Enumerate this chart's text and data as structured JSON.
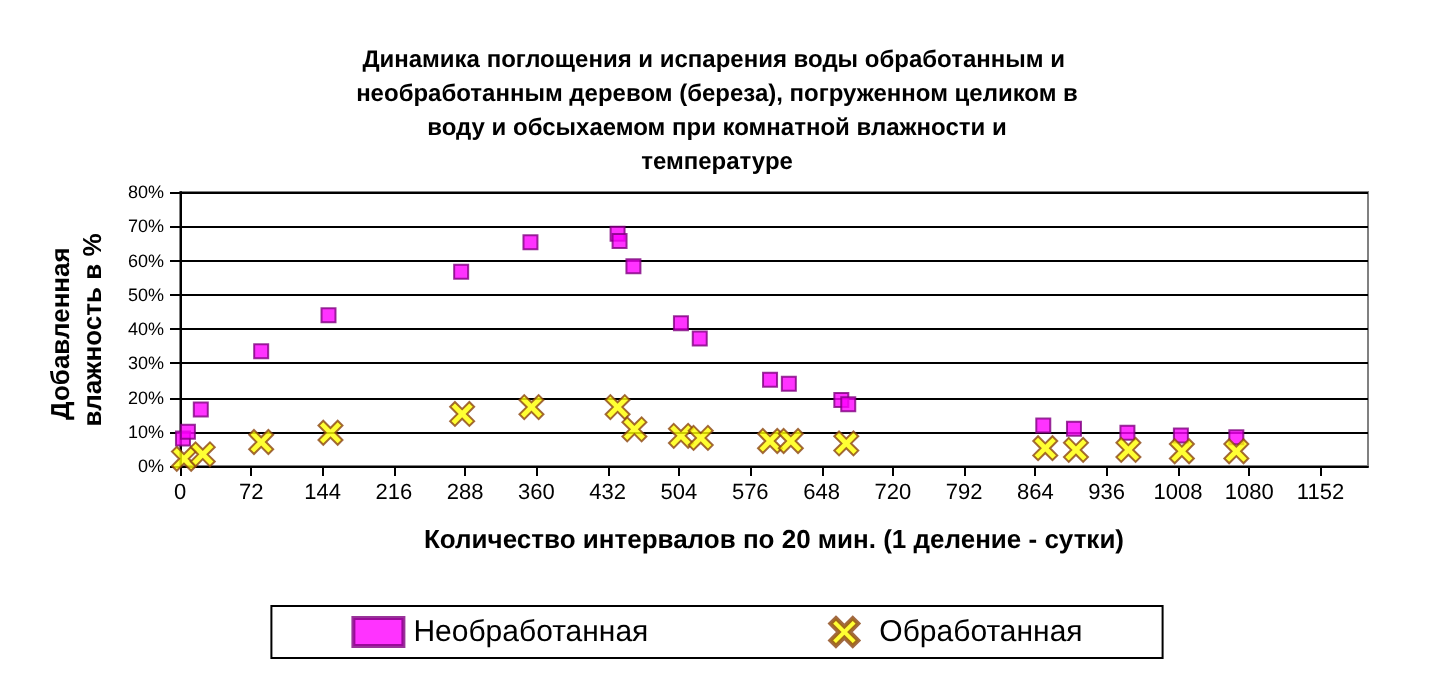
{
  "chart_data": {
    "type": "scatter",
    "title": "Динамика поглощения и испарения воды обработанным и необработанным деревом (береза), погруженном целиком в воду и обсыхаемом при комнатной влажности и температуре",
    "xlabel": "Количество интервалов по 20 мин. (1 деление - сутки)",
    "ylabel": "Добавленная влажность в %",
    "xlim": [
      0,
      1200
    ],
    "xticks": [
      0,
      72,
      144,
      216,
      288,
      360,
      432,
      504,
      576,
      648,
      720,
      792,
      864,
      936,
      1008,
      1080,
      1152
    ],
    "ylim": [
      0,
      80
    ],
    "yticks": [
      {
        "value": 0,
        "label": "0%"
      },
      {
        "value": 10,
        "label": "10%"
      },
      {
        "value": 20,
        "label": "20%"
      },
      {
        "value": 30,
        "label": "30%"
      },
      {
        "value": 40,
        "label": "40%"
      },
      {
        "value": 50,
        "label": "50%"
      },
      {
        "value": 60,
        "label": "60%"
      },
      {
        "value": 70,
        "label": "70%"
      },
      {
        "value": 80,
        "label": "80%"
      }
    ],
    "grid": "y",
    "legend": "bottom",
    "series": [
      {
        "name": "Необработанная",
        "color": "#ff00ff",
        "marker": "square",
        "x": [
          3,
          8,
          21,
          82,
          150,
          284,
          354,
          442,
          444,
          458,
          506,
          525,
          596,
          615,
          668,
          675,
          872,
          903,
          957,
          1011,
          1067
        ],
        "values": [
          8,
          10,
          16.5,
          33.5,
          44,
          56.7,
          65.3,
          67.8,
          65.7,
          58.3,
          41.7,
          37.2,
          25.2,
          24,
          19.3,
          18,
          11.8,
          10.9,
          9.7,
          8.9,
          8.4
        ]
      },
      {
        "name": "Обработанная",
        "color": "#ffff00",
        "marker": "cross",
        "x": [
          4,
          23,
          82,
          152,
          285,
          355,
          442,
          459,
          506,
          526,
          596,
          617,
          673,
          874,
          905,
          958,
          1012,
          1067
        ],
        "values": [
          2.1,
          3.4,
          7,
          9.7,
          15.2,
          17.2,
          17.2,
          10.7,
          8.8,
          8.2,
          7.3,
          7.3,
          6.6,
          5.2,
          4.7,
          4.7,
          4.3,
          4.3
        ]
      }
    ]
  }
}
